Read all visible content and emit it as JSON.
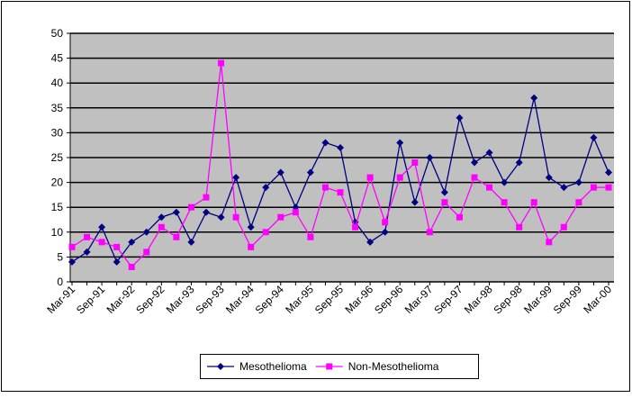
{
  "chart_data": {
    "type": "line",
    "categories": [
      "Mar-91",
      null,
      "Sep-91",
      null,
      "Mar-92",
      null,
      "Sep-92",
      null,
      "Mar-93",
      null,
      "Sep-93",
      null,
      "Mar-94",
      null,
      "Sep-94",
      null,
      "Mar-95",
      null,
      "Sep-95",
      null,
      "Mar-96",
      null,
      "Sep-96",
      null,
      "Mar-97",
      null,
      "Sep-97",
      null,
      "Mar-98",
      null,
      "Sep-98",
      null,
      "Mar-99",
      null,
      "Sep-99",
      null,
      "Mar-00"
    ],
    "series": [
      {
        "name": "Mesothelioma",
        "color": "#000080",
        "marker": "diamond",
        "values": [
          4,
          6,
          11,
          4,
          8,
          10,
          13,
          14,
          8,
          14,
          13,
          21,
          11,
          19,
          22,
          15,
          22,
          28,
          27,
          12,
          8,
          10,
          28,
          16,
          25,
          18,
          33,
          24,
          26,
          20,
          24,
          37,
          21,
          19,
          20,
          29,
          22
        ]
      },
      {
        "name": "Non-Mesothelioma",
        "color": "#ff00ff",
        "marker": "square",
        "values": [
          7,
          9,
          8,
          7,
          3,
          6,
          11,
          9,
          15,
          17,
          44,
          13,
          7,
          10,
          13,
          14,
          9,
          19,
          18,
          11,
          21,
          12,
          21,
          24,
          10,
          16,
          13,
          21,
          19,
          16,
          11,
          16,
          8,
          11,
          16,
          19,
          19
        ]
      }
    ],
    "ylim": [
      0,
      50
    ],
    "yticks": [
      0,
      5,
      10,
      15,
      20,
      25,
      30,
      35,
      40,
      45,
      50
    ],
    "grid": true,
    "legend": "bottom"
  }
}
